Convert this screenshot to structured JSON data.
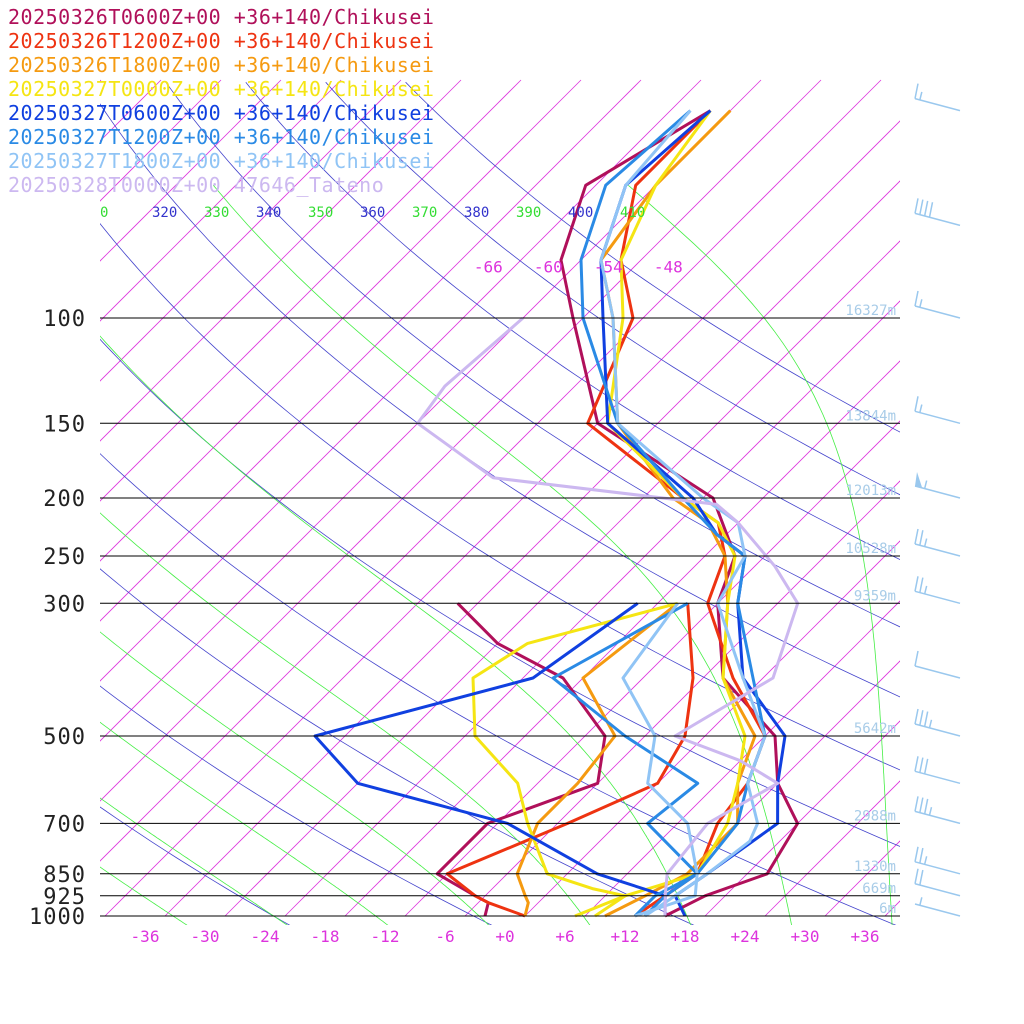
{
  "chart_data": {
    "type": "line",
    "title": "",
    "xlabel": "",
    "ylabel": "",
    "diagram": "skew-T log-P",
    "pressure_axis": {
      "scale": "log",
      "range_hPa": [
        1000,
        100
      ],
      "levels": [
        {
          "p": 100,
          "label": "100",
          "height": "16327m"
        },
        {
          "p": 150,
          "label": "150",
          "height": "13844m"
        },
        {
          "p": 200,
          "label": "200",
          "height": "12013m"
        },
        {
          "p": 250,
          "label": "250",
          "height": "10528m"
        },
        {
          "p": 300,
          "label": "300",
          "height": "9359m"
        },
        {
          "p": 500,
          "label": "500",
          "height": "5642m"
        },
        {
          "p": 700,
          "label": "700",
          "height": "2988m"
        },
        {
          "p": 850,
          "label": "850",
          "height": "1330m"
        },
        {
          "p": 925,
          "label": "925",
          "height": "669m"
        },
        {
          "p": 1000,
          "label": "1000",
          "height": "6m"
        }
      ]
    },
    "temperature_axis": {
      "unit": "°C",
      "ticks": [
        "-36",
        "-30",
        "-24",
        "-18",
        "-12",
        "-6",
        "+0",
        "+6",
        "+12",
        "+18",
        "+24",
        "+30",
        "+36"
      ],
      "upper_isotherm_labels": [
        "-66",
        "-60",
        "-54",
        "-48"
      ]
    },
    "theta_labels": {
      "values": [
        "0",
        "320",
        "330",
        "340",
        "350",
        "360",
        "370",
        "380",
        "390",
        "400",
        "410"
      ],
      "colors": [
        "#33dd33",
        "#3333cc",
        "#33dd33",
        "#3333cc",
        "#33dd33",
        "#3333cc",
        "#33dd33",
        "#3333cc",
        "#33dd33",
        "#3333cc",
        "#33dd33"
      ]
    },
    "legend": {
      "placement": "top-left",
      "entries": [
        {
          "text": "20250326T0600Z+00 +36+140/Chikusei",
          "color": "#b0105a"
        },
        {
          "text": "20250326T1200Z+00 +36+140/Chikusei",
          "color": "#ee3311"
        },
        {
          "text": "20250326T1800Z+00 +36+140/Chikusei",
          "color": "#f59a10"
        },
        {
          "text": "20250327T0000Z+00 +36+140/Chikusei",
          "color": "#f5e513"
        },
        {
          "text": "20250327T0600Z+00 +36+140/Chikusei",
          "color": "#1040e0"
        },
        {
          "text": "20250327T1200Z+00 +36+140/Chikusei",
          "color": "#2a8ae5"
        },
        {
          "text": "20250327T1800Z+00 +36+140/Chikusei",
          "color": "#90c4f5"
        },
        {
          "text": "20250328T0000Z+00 47646_Tateno",
          "color": "#ccb8f0"
        }
      ]
    },
    "colors": {
      "isobar": "#000000",
      "isotherm": "#dd33dd",
      "dry_adiabat": "#4444cc",
      "moist_adiabat": "#44ee44",
      "height_label": "#a8cce8",
      "wind_barb": "#9ac8ee"
    },
    "series": [
      {
        "color": "#b0105a",
        "temperature": [
          [
            1000,
            16
          ],
          [
            925,
            18
          ],
          [
            850,
            22
          ],
          [
            700,
            20
          ],
          [
            600,
            14
          ],
          [
            500,
            9
          ],
          [
            400,
            -2
          ],
          [
            300,
            -10
          ],
          [
            250,
            -13
          ],
          [
            200,
            -21
          ],
          [
            150,
            -40
          ],
          [
            100,
            -53
          ],
          [
            80,
            -60
          ],
          [
            60,
            -65
          ],
          [
            45,
            -60
          ]
        ],
        "dewpoint": [
          [
            1000,
            -2
          ],
          [
            950,
            -3
          ],
          [
            925,
            -5
          ],
          [
            850,
            -11
          ],
          [
            700,
            -11
          ],
          [
            600,
            -4
          ],
          [
            500,
            -8
          ],
          [
            400,
            -18
          ],
          [
            350,
            -28
          ],
          [
            300,
            -36
          ]
        ]
      },
      {
        "color": "#ee3311",
        "temperature": [
          [
            1000,
            13
          ],
          [
            925,
            14
          ],
          [
            850,
            15
          ],
          [
            700,
            12
          ],
          [
            600,
            11
          ],
          [
            500,
            8
          ],
          [
            400,
            -1
          ],
          [
            300,
            -11
          ],
          [
            250,
            -14
          ],
          [
            220,
            -18
          ],
          [
            200,
            -24
          ],
          [
            150,
            -41
          ],
          [
            100,
            -47
          ],
          [
            80,
            -54
          ],
          [
            60,
            -60
          ],
          [
            45,
            -60
          ]
        ],
        "dewpoint": [
          [
            1000,
            2
          ],
          [
            950,
            -3
          ],
          [
            925,
            -5
          ],
          [
            850,
            -10
          ],
          [
            700,
            -3
          ],
          [
            600,
            2
          ],
          [
            500,
            0
          ],
          [
            400,
            -5
          ],
          [
            300,
            -13
          ]
        ]
      },
      {
        "color": "#f59a10",
        "temperature": [
          [
            1000,
            10
          ],
          [
            925,
            12
          ],
          [
            850,
            14
          ],
          [
            700,
            14
          ],
          [
            600,
            10
          ],
          [
            500,
            7
          ],
          [
            400,
            -2
          ],
          [
            300,
            -9
          ],
          [
            250,
            -14
          ],
          [
            220,
            -19
          ],
          [
            200,
            -25
          ],
          [
            150,
            -38
          ],
          [
            100,
            -49
          ],
          [
            80,
            -56
          ],
          [
            60,
            -58
          ],
          [
            45,
            -58
          ]
        ],
        "dewpoint": [
          [
            1000,
            2
          ],
          [
            950,
            1
          ],
          [
            925,
            0
          ],
          [
            850,
            -3
          ],
          [
            700,
            -6
          ],
          [
            600,
            -6
          ],
          [
            500,
            -7
          ],
          [
            400,
            -16
          ],
          [
            300,
            -14
          ]
        ]
      },
      {
        "color": "#f5e513",
        "temperature": [
          [
            1000,
            9
          ],
          [
            925,
            10
          ],
          [
            850,
            15
          ],
          [
            700,
            13
          ],
          [
            600,
            10
          ],
          [
            500,
            6
          ],
          [
            400,
            -2
          ],
          [
            300,
            -9
          ],
          [
            250,
            -13
          ],
          [
            220,
            -18
          ],
          [
            200,
            -24
          ],
          [
            150,
            -39
          ],
          [
            100,
            -48
          ],
          [
            80,
            -54
          ],
          [
            60,
            -58
          ],
          [
            45,
            -60
          ]
        ],
        "dewpoint": [
          [
            1000,
            7
          ],
          [
            925,
            10
          ],
          [
            900,
            6
          ],
          [
            850,
            0
          ],
          [
            700,
            -7
          ],
          [
            600,
            -12
          ],
          [
            500,
            -21
          ],
          [
            400,
            -27
          ],
          [
            350,
            -25
          ],
          [
            300,
            -14
          ]
        ]
      },
      {
        "color": "#1040e0",
        "temperature": [
          [
            1000,
            18
          ],
          [
            925,
            15
          ],
          [
            850,
            16
          ],
          [
            700,
            18
          ],
          [
            600,
            14
          ],
          [
            500,
            10
          ],
          [
            400,
            0
          ],
          [
            300,
            -8
          ],
          [
            250,
            -12
          ],
          [
            230,
            -17
          ],
          [
            200,
            -23
          ],
          [
            150,
            -39
          ],
          [
            100,
            -50
          ],
          [
            80,
            -56
          ],
          [
            60,
            -61
          ],
          [
            45,
            -60
          ]
        ],
        "dewpoint": [
          [
            1000,
            16
          ],
          [
            925,
            14
          ],
          [
            850,
            5
          ],
          [
            700,
            -9
          ],
          [
            600,
            -28
          ],
          [
            500,
            -37
          ],
          [
            400,
            -21
          ],
          [
            300,
            -18
          ]
        ]
      },
      {
        "color": "#2a8ae5",
        "temperature": [
          [
            1000,
            13
          ],
          [
            925,
            13
          ],
          [
            850,
            15
          ],
          [
            700,
            14
          ],
          [
            600,
            11
          ],
          [
            500,
            8
          ],
          [
            400,
            1
          ],
          [
            300,
            -8
          ],
          [
            250,
            -12
          ],
          [
            230,
            -17
          ],
          [
            200,
            -24
          ],
          [
            150,
            -38
          ],
          [
            100,
            -52
          ],
          [
            80,
            -58
          ],
          [
            60,
            -63
          ],
          [
            45,
            -62
          ]
        ],
        "dewpoint": [
          [
            1000,
            14
          ],
          [
            925,
            14
          ],
          [
            850,
            15
          ],
          [
            700,
            5
          ],
          [
            600,
            6
          ],
          [
            500,
            -6
          ],
          [
            400,
            -19
          ],
          [
            300,
            -13
          ]
        ]
      },
      {
        "color": "#90c4f5",
        "temperature": [
          [
            1000,
            14
          ],
          [
            925,
            15
          ],
          [
            850,
            16
          ],
          [
            750,
            17
          ],
          [
            700,
            16
          ],
          [
            600,
            11
          ],
          [
            500,
            8
          ],
          [
            400,
            0
          ],
          [
            300,
            -10
          ],
          [
            250,
            -12
          ],
          [
            220,
            -16
          ],
          [
            200,
            -22
          ],
          [
            150,
            -38
          ],
          [
            100,
            -49
          ],
          [
            80,
            -56
          ],
          [
            60,
            -61
          ],
          [
            45,
            -62
          ]
        ],
        "dewpoint": [
          [
            1000,
            13
          ],
          [
            925,
            17
          ],
          [
            850,
            15
          ],
          [
            700,
            9
          ],
          [
            600,
            1
          ],
          [
            500,
            -3
          ],
          [
            400,
            -12
          ],
          [
            300,
            -14
          ]
        ]
      },
      {
        "color": "#ccb8f0",
        "temperature": [
          [
            1000,
            16
          ],
          [
            925,
            14
          ],
          [
            850,
            12
          ],
          [
            700,
            11
          ],
          [
            600,
            14
          ],
          [
            550,
            8
          ],
          [
            500,
            -1
          ],
          [
            400,
            3
          ],
          [
            300,
            -2
          ],
          [
            260,
            -8
          ],
          [
            220,
            -16
          ],
          [
            205,
            -20
          ],
          [
            185,
            -45
          ],
          [
            150,
            -58
          ],
          [
            130,
            -59
          ],
          [
            100,
            -58
          ]
        ],
        "dewpoint": null
      }
    ],
    "wind_barbs": [
      {
        "p": 1000,
        "speed_kt": 5
      },
      {
        "p": 925,
        "speed_kt": 20
      },
      {
        "p": 850,
        "speed_kt": 25
      },
      {
        "p": 700,
        "speed_kt": 35
      },
      {
        "p": 600,
        "speed_kt": 30
      },
      {
        "p": 500,
        "speed_kt": 35
      },
      {
        "p": 400,
        "speed_kt": 10
      },
      {
        "p": 300,
        "speed_kt": 25
      },
      {
        "p": 250,
        "speed_kt": 25
      },
      {
        "p": 200,
        "speed_kt": 55
      },
      {
        "p": 150,
        "speed_kt": 15
      },
      {
        "p": 100,
        "speed_kt": 15
      },
      {
        "p": 70,
        "speed_kt": 40
      },
      {
        "p": 45,
        "speed_kt": 15
      }
    ],
    "grid": true
  }
}
